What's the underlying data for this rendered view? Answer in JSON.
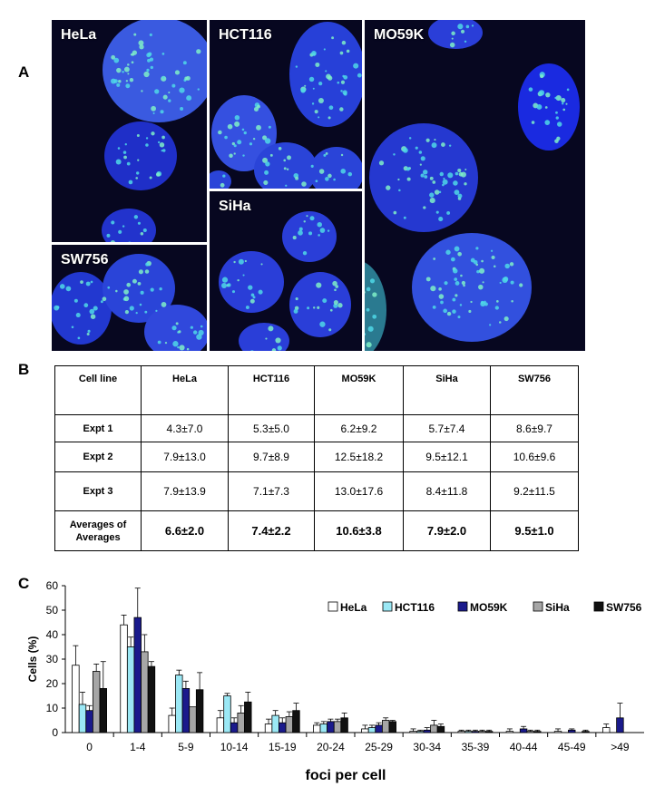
{
  "panel_labels": {
    "a": "A",
    "b": "B",
    "c": "C"
  },
  "micrographs": [
    {
      "id": "hela",
      "label": "HeLa"
    },
    {
      "id": "hct116",
      "label": "HCT116"
    },
    {
      "id": "mo59k",
      "label": "MO59K"
    },
    {
      "id": "siha",
      "label": "SiHa"
    },
    {
      "id": "sw756",
      "label": "SW756"
    }
  ],
  "table": {
    "header": [
      "Cell line",
      "HeLa",
      "HCT116",
      "MO59K",
      "SiHa",
      "SW756"
    ],
    "rows": [
      {
        "label": "Expt 1",
        "values": [
          "4.3±7.0",
          "5.3±5.0",
          "6.2±9.2",
          "5.7±7.4",
          "8.6±9.7"
        ]
      },
      {
        "label": "Expt 2",
        "values": [
          "7.9±13.0",
          "9.7±8.9",
          "12.5±18.2",
          "9.5±12.1",
          "10.6±9.6"
        ]
      },
      {
        "label": "Expt 3",
        "values": [
          "7.9±13.9",
          "7.1±7.3",
          "13.0±17.6",
          "8.4±11.8",
          "9.2±11.5"
        ]
      },
      {
        "label_line1": "Averages of",
        "label_line2": "Averages",
        "values": [
          "6.6±2.0",
          "7.4±2.2",
          "10.6±3.8",
          "7.9±2.0",
          "9.5±1.0"
        ]
      }
    ]
  },
  "chart_data": {
    "type": "bar",
    "title": "",
    "xlabel": "foci per cell",
    "ylabel": "Cells (%)",
    "ylim": [
      0,
      60
    ],
    "yticks": [
      0,
      10,
      20,
      30,
      40,
      50,
      60
    ],
    "grid": false,
    "legend_position": "top-right",
    "categories": [
      "0",
      "1-4",
      "5-9",
      "10-14",
      "15-19",
      "20-24",
      "25-29",
      "30-34",
      "35-39",
      "40-44",
      "45-49",
      ">49"
    ],
    "series": [
      {
        "name": "HeLa",
        "color": "#ffffff",
        "values": [
          27.5,
          44,
          7,
          6,
          3.5,
          3,
          1.5,
          0.5,
          0.5,
          0.5,
          0.5,
          2
        ],
        "errors": [
          8,
          4,
          3,
          3,
          2,
          1,
          1.5,
          1,
          0.5,
          1,
          1,
          1.5
        ]
      },
      {
        "name": "HCT116",
        "color": "#9be8f5",
        "values": [
          11.5,
          35,
          23.5,
          15,
          7,
          3.5,
          2,
          0.5,
          0.5,
          0,
          0,
          0
        ],
        "errors": [
          5,
          4,
          2,
          1,
          2,
          1,
          1,
          0.5,
          0.5,
          0,
          0,
          0
        ]
      },
      {
        "name": "MO59K",
        "color": "#1a1a8c",
        "values": [
          9,
          47,
          18,
          4,
          4,
          4.5,
          3,
          1,
          0.5,
          1.5,
          1,
          6
        ],
        "errors": [
          2,
          12,
          3,
          2,
          2,
          1,
          1,
          1,
          0.5,
          1,
          0.5,
          6
        ]
      },
      {
        "name": "SiHa",
        "color": "#a6a6a6",
        "values": [
          25,
          33,
          10.5,
          8,
          6.5,
          4.5,
          5,
          3,
          0.5,
          0.5,
          0,
          0
        ],
        "errors": [
          3,
          7,
          0,
          3,
          2,
          1,
          1,
          2,
          0.5,
          0.5,
          0,
          0
        ]
      },
      {
        "name": "SW756",
        "color": "#111111",
        "values": [
          18,
          27,
          17.5,
          12.5,
          9,
          6,
          4.5,
          2.5,
          0.5,
          0.5,
          0.5,
          0
        ],
        "errors": [
          11,
          2,
          7,
          4,
          3,
          2,
          0.5,
          1,
          0.5,
          0.5,
          0.5,
          0
        ]
      }
    ]
  }
}
